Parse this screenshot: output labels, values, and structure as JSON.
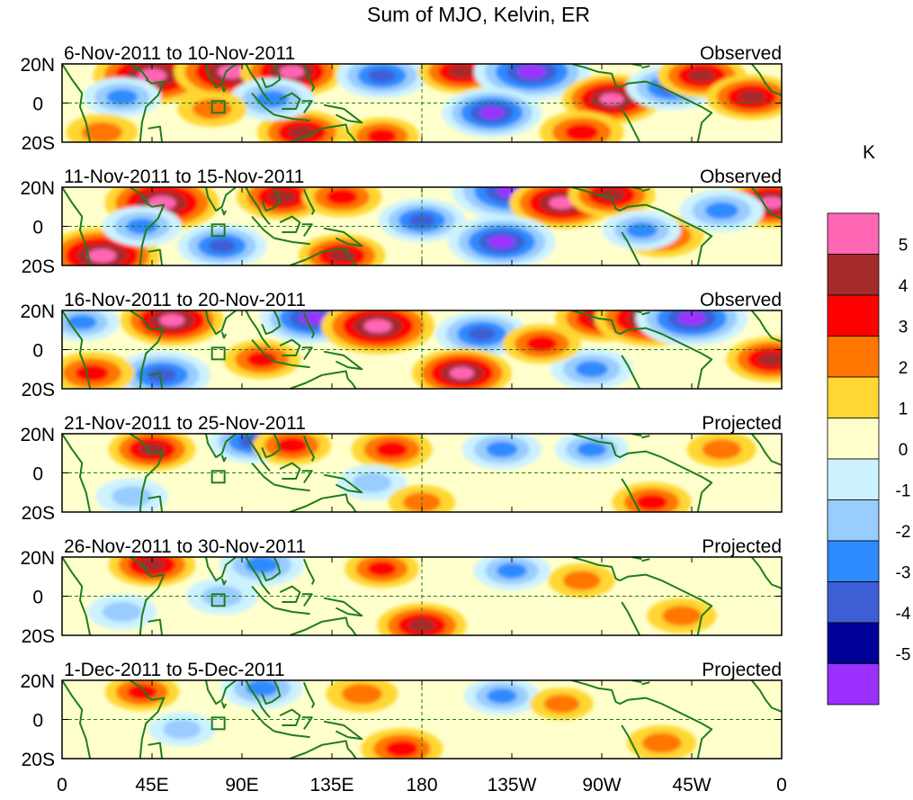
{
  "chart_data": {
    "type": "heatmap",
    "title": "Sum of MJO, Kelvin, ER",
    "colorbar": {
      "title": "K",
      "levels": [
        "5",
        "4",
        "3",
        "2",
        "1",
        "0",
        "-1",
        "-2",
        "-3",
        "-4",
        "-5"
      ],
      "colors": [
        "#ff66b4",
        "#a52a2a",
        "#ff0000",
        "#ff7700",
        "#ffd633",
        "#ffffcc",
        "#ccf2ff",
        "#99ccff",
        "#2e8bff",
        "#3d5fd6",
        "#000099",
        "#9b30ff"
      ]
    },
    "x_ticks": [
      "0",
      "45E",
      "90E",
      "135E",
      "180",
      "135W",
      "90W",
      "45W",
      "0"
    ],
    "y_ticks": [
      "20N",
      "0",
      "20S"
    ],
    "panels": [
      {
        "date": "6-Nov-2011 to 10-Nov-2011",
        "label": "Observed"
      },
      {
        "date": "11-Nov-2011 to 15-Nov-2011",
        "label": "Observed"
      },
      {
        "date": "16-Nov-2011 to 20-Nov-2011",
        "label": "Observed"
      },
      {
        "date": "21-Nov-2011 to 25-Nov-2011",
        "label": "Projected"
      },
      {
        "date": "26-Nov-2011 to 30-Nov-2011",
        "label": "Projected"
      },
      {
        "date": "1-Dec-2011 to 5-Dec-2011",
        "label": "Projected"
      }
    ],
    "anomalies": [
      [
        {
          "lon": 45,
          "lat": 14,
          "v": 5.6
        },
        {
          "lon": 85,
          "lat": 16,
          "v": 5.5
        },
        {
          "lon": 115,
          "lat": 16,
          "v": 4.5
        },
        {
          "lon": 160,
          "lat": 14,
          "v": -3.5
        },
        {
          "lon": 200,
          "lat": 16,
          "v": 3.2
        },
        {
          "lon": 235,
          "lat": 16,
          "v": -5.5
        },
        {
          "lon": 275,
          "lat": 2,
          "v": 4.2
        },
        {
          "lon": 305,
          "lat": 8,
          "v": -3.5
        },
        {
          "lon": 320,
          "lat": 14,
          "v": 3.3
        },
        {
          "lon": 345,
          "lat": 3,
          "v": 3.5
        },
        {
          "lon": 120,
          "lat": -15,
          "v": 3.4
        },
        {
          "lon": 105,
          "lat": 2,
          "v": -3.0
        },
        {
          "lon": 215,
          "lat": -5,
          "v": -4.2
        },
        {
          "lon": 30,
          "lat": 3,
          "v": -2.5
        },
        {
          "lon": 75,
          "lat": -3,
          "v": 1.8
        },
        {
          "lon": 260,
          "lat": -15,
          "v": 3.0
        },
        {
          "lon": 160,
          "lat": -17,
          "v": 2.2
        },
        {
          "lon": 20,
          "lat": -15,
          "v": 2.0
        }
      ],
      [
        {
          "lon": 50,
          "lat": 12,
          "v": 5.4
        },
        {
          "lon": 110,
          "lat": 15,
          "v": 3.5
        },
        {
          "lon": 140,
          "lat": 15,
          "v": 2.6
        },
        {
          "lon": 225,
          "lat": 18,
          "v": -5.8
        },
        {
          "lon": 250,
          "lat": 12,
          "v": 4.6
        },
        {
          "lon": 275,
          "lat": 16,
          "v": 3.2
        },
        {
          "lon": 220,
          "lat": -8,
          "v": -4.8
        },
        {
          "lon": 180,
          "lat": 3,
          "v": -3.2
        },
        {
          "lon": 20,
          "lat": -15,
          "v": 5.5
        },
        {
          "lon": 80,
          "lat": -10,
          "v": -3.4
        },
        {
          "lon": 140,
          "lat": -15,
          "v": 3.2
        },
        {
          "lon": 300,
          "lat": -5,
          "v": 3.0
        },
        {
          "lon": 355,
          "lat": 12,
          "v": 4.2
        },
        {
          "lon": 330,
          "lat": 8,
          "v": -3.0
        },
        {
          "lon": 290,
          "lat": -2,
          "v": -2.5
        },
        {
          "lon": 40,
          "lat": 0,
          "v": -2.6
        }
      ],
      [
        {
          "lon": 55,
          "lat": 15,
          "v": 4.5
        },
        {
          "lon": 125,
          "lat": 16,
          "v": -4.5
        },
        {
          "lon": 158,
          "lat": 12,
          "v": 5.3
        },
        {
          "lon": 210,
          "lat": 8,
          "v": -3.6
        },
        {
          "lon": 270,
          "lat": 16,
          "v": 3.7
        },
        {
          "lon": 295,
          "lat": 16,
          "v": 5.4
        },
        {
          "lon": 315,
          "lat": 16,
          "v": -5.2
        },
        {
          "lon": 50,
          "lat": -13,
          "v": -4.0
        },
        {
          "lon": 200,
          "lat": -12,
          "v": 4.2
        },
        {
          "lon": 265,
          "lat": -10,
          "v": -2.8
        },
        {
          "lon": 15,
          "lat": -12,
          "v": 3.0
        },
        {
          "lon": 355,
          "lat": -5,
          "v": 3.5
        },
        {
          "lon": 100,
          "lat": -5,
          "v": 2.4
        },
        {
          "lon": 10,
          "lat": 14,
          "v": -2.2
        },
        {
          "lon": 240,
          "lat": 3,
          "v": 2.5
        }
      ],
      [
        {
          "lon": 45,
          "lat": 12,
          "v": 3.2
        },
        {
          "lon": 95,
          "lat": 16,
          "v": -3.2
        },
        {
          "lon": 115,
          "lat": 14,
          "v": 2.5
        },
        {
          "lon": 165,
          "lat": 12,
          "v": 2.7
        },
        {
          "lon": 220,
          "lat": 12,
          "v": -2.6
        },
        {
          "lon": 265,
          "lat": 12,
          "v": -2.2
        },
        {
          "lon": 295,
          "lat": -15,
          "v": 2.6
        },
        {
          "lon": 35,
          "lat": -12,
          "v": -2.0
        },
        {
          "lon": 155,
          "lat": -5,
          "v": -1.8
        },
        {
          "lon": 330,
          "lat": 12,
          "v": 1.8
        },
        {
          "lon": 180,
          "lat": -15,
          "v": 1.6
        }
      ],
      [
        {
          "lon": 45,
          "lat": 16,
          "v": 3.2
        },
        {
          "lon": 100,
          "lat": 16,
          "v": -3.0
        },
        {
          "lon": 160,
          "lat": 14,
          "v": 2.2
        },
        {
          "lon": 225,
          "lat": 13,
          "v": -2.4
        },
        {
          "lon": 180,
          "lat": -15,
          "v": 3.4
        },
        {
          "lon": 80,
          "lat": 0,
          "v": -2.0
        },
        {
          "lon": 30,
          "lat": -8,
          "v": -1.8
        },
        {
          "lon": 260,
          "lat": 8,
          "v": 1.6
        },
        {
          "lon": 310,
          "lat": -10,
          "v": 1.8
        }
      ],
      [
        {
          "lon": 40,
          "lat": 14,
          "v": 2.2
        },
        {
          "lon": 100,
          "lat": 16,
          "v": -2.8
        },
        {
          "lon": 150,
          "lat": 13,
          "v": 2.0
        },
        {
          "lon": 220,
          "lat": 12,
          "v": -2.3
        },
        {
          "lon": 170,
          "lat": -15,
          "v": 2.8
        },
        {
          "lon": 60,
          "lat": -5,
          "v": -1.6
        },
        {
          "lon": 300,
          "lat": -12,
          "v": 1.8
        },
        {
          "lon": 250,
          "lat": 8,
          "v": 1.3
        }
      ]
    ]
  }
}
